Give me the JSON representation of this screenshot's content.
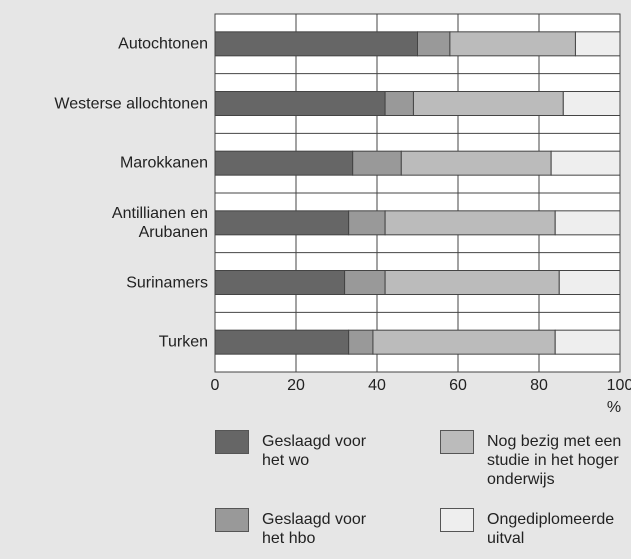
{
  "chart_data": {
    "type": "stacked_bar_horizontal",
    "categories": [
      "Autochtonen",
      "Westerse allochtonen",
      "Marokkanen",
      "Antillianen en\nArubanen",
      "Surinamers",
      "Turken"
    ],
    "series": [
      {
        "name": "Geslaagd voor\nhet wo",
        "color": "#666666",
        "values": [
          50,
          42,
          34,
          33,
          32,
          33
        ]
      },
      {
        "name": "Geslaagd voor\nhet hbo",
        "color": "#999999",
        "values": [
          8,
          7,
          12,
          9,
          10,
          6
        ]
      },
      {
        "name": "Nog bezig met een\nstudie in het hoger\nonderwijs",
        "color": "#bbbbbb",
        "values": [
          31,
          37,
          37,
          42,
          43,
          45
        ]
      },
      {
        "name": "Ongediplomeerde\nuitval",
        "color": "#eeeeee",
        "values": [
          11,
          14,
          17,
          16,
          15,
          16
        ]
      }
    ],
    "xlim": [
      0,
      100
    ],
    "xticks": [
      0,
      20,
      40,
      60,
      80,
      100
    ],
    "xlabel": "%",
    "grid": true
  }
}
